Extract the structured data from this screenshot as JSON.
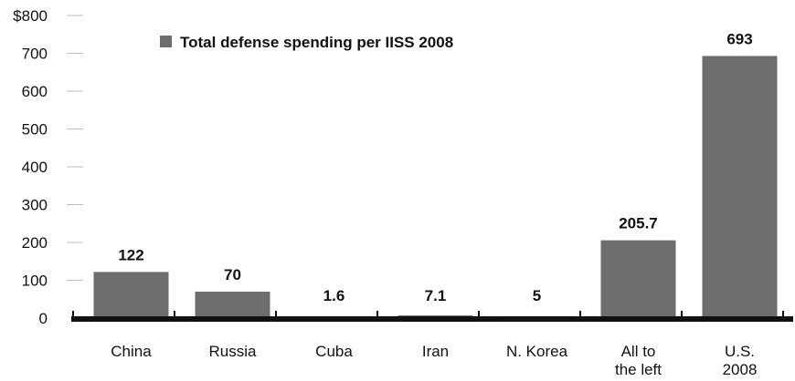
{
  "chart_data": {
    "type": "bar",
    "categories": [
      "China",
      "Russia",
      "Cuba",
      "Iran",
      "N. Korea",
      "All to\nthe left",
      "U.S.\n2008"
    ],
    "series": [
      {
        "name": "Total defense spending per IISS 2008",
        "values": [
          122,
          70,
          1.6,
          7.1,
          5,
          205.7,
          693
        ]
      }
    ],
    "data_labels": [
      "122",
      "70",
      "1.6",
      "7.1",
      "5",
      "205.7",
      "693"
    ],
    "y_ticks": [
      "0",
      "100",
      "200",
      "300",
      "400",
      "500",
      "600",
      "700",
      "$800"
    ],
    "ylim": [
      0,
      800
    ],
    "grid": false,
    "legend_position": "top-left",
    "colors": {
      "bar": "#6d6d6d",
      "axis": "#111111",
      "tick_mark": "#bdbdbd"
    }
  }
}
